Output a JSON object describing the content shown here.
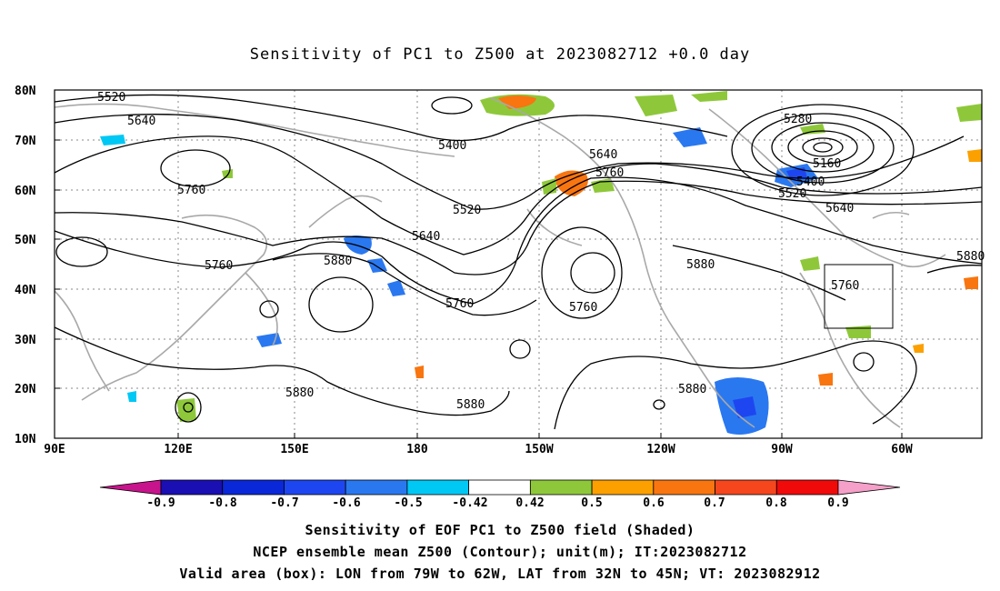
{
  "title": "Sensitivity of PC1 to Z500 at 2023082712 +0.0 day",
  "lat_labels": [
    "80N",
    "70N",
    "60N",
    "50N",
    "40N",
    "30N",
    "20N",
    "10N"
  ],
  "lon_labels": [
    "90E",
    "120E",
    "150E",
    "180",
    "150W",
    "120W",
    "90W",
    "60W"
  ],
  "contour_labels": [
    "5520",
    "5640",
    "5400",
    "5640",
    "5760",
    "5280",
    "5160",
    "5400",
    "5520",
    "5640",
    "5760",
    "5520",
    "5640",
    "5760",
    "5880",
    "5880",
    "5760",
    "5760",
    "5880",
    "5880",
    "5880",
    "5880",
    "5760",
    "588"
  ],
  "colorbar": {
    "labels": [
      "-0.9",
      "-0.8",
      "-0.7",
      "-0.6",
      "-0.5",
      "-0.42",
      "0.42",
      "0.5",
      "0.6",
      "0.7",
      "0.8",
      "0.9"
    ],
    "colors": [
      "#1a0fb3",
      "#0a28d8",
      "#1e46f0",
      "#2a78f0",
      "#00c8f5",
      "#ffffff",
      "#8ec83a",
      "#fca000",
      "#f87510",
      "#f5461e",
      "#f00a0a"
    ],
    "left_arrow_color": "#c8148c",
    "right_arrow_color": "#f5a0c8"
  },
  "captions": {
    "line1": "Sensitivity of EOF PC1 to Z500 field (Shaded)",
    "line2": "NCEP ensemble mean Z500 (Contour); unit(m); IT:2023082712",
    "line3": "Valid area (box): LON from 79W to 62W, LAT from 32N to 45N; VT: 2023082912"
  }
}
